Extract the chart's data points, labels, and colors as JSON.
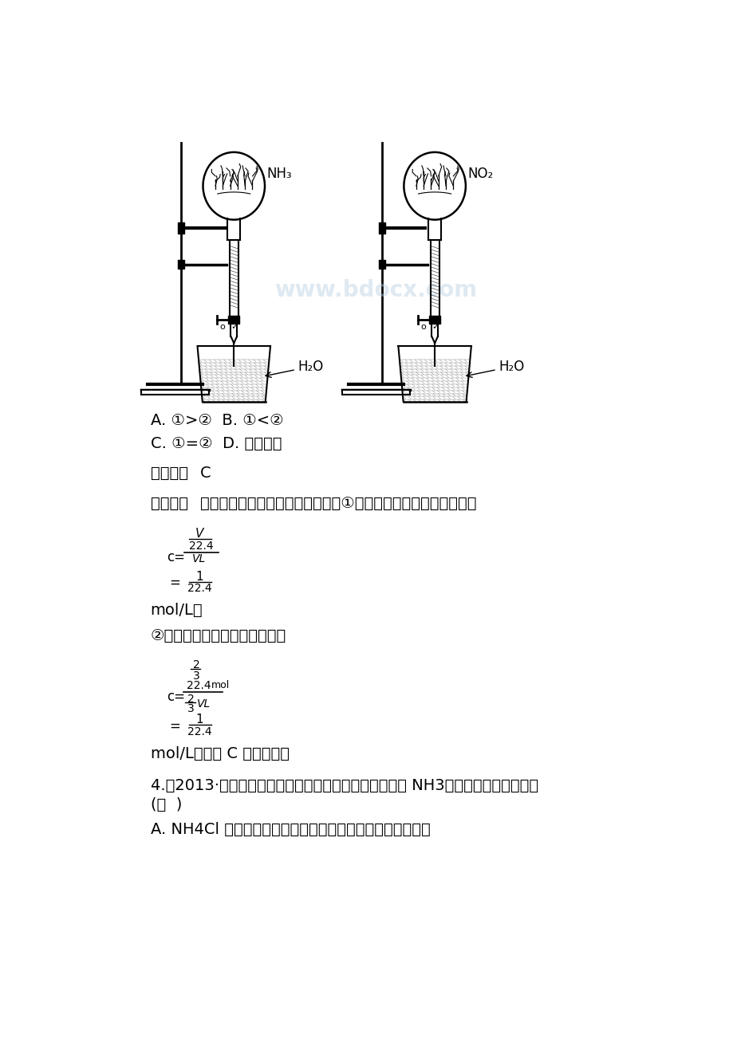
{
  "bg_color": "#ffffff",
  "watermark": "www.bdocx.com",
  "watermark_color": "#b8cfe0",
  "watermark_alpha": 0.45,
  "text_color": "#000000",
  "options_line1": "A. ①>②  B. ①<②",
  "options_line2": "C. ①=②  D. 不能确定",
  "answer_label": "【答案】",
  "answer_value": "C",
  "hint_label": "【点拨】",
  "hint_text": "假设两个容器的状况为标准状况，①中物质的量浓度计算公式为：",
  "mol_l_semi": "mol/L；",
  "formula2_intro": "②中物质的量浓度计算公式为：",
  "conclusion": "mol/L，因此 C 选项正确。",
  "q4_line1": "4.（2013·试题调研）为了在实验室更简便地制取干燥的 NH3，下列方法中适合的是",
  "q4_paren": "(　  )",
  "q4_option_a": "A. NH4Cl 与浓硫酸混合共热，生成的气体用碘石灰进行干燥",
  "nh3_label": "NH₃",
  "no2_label": "NO₂",
  "h2o_label": "H₂O"
}
